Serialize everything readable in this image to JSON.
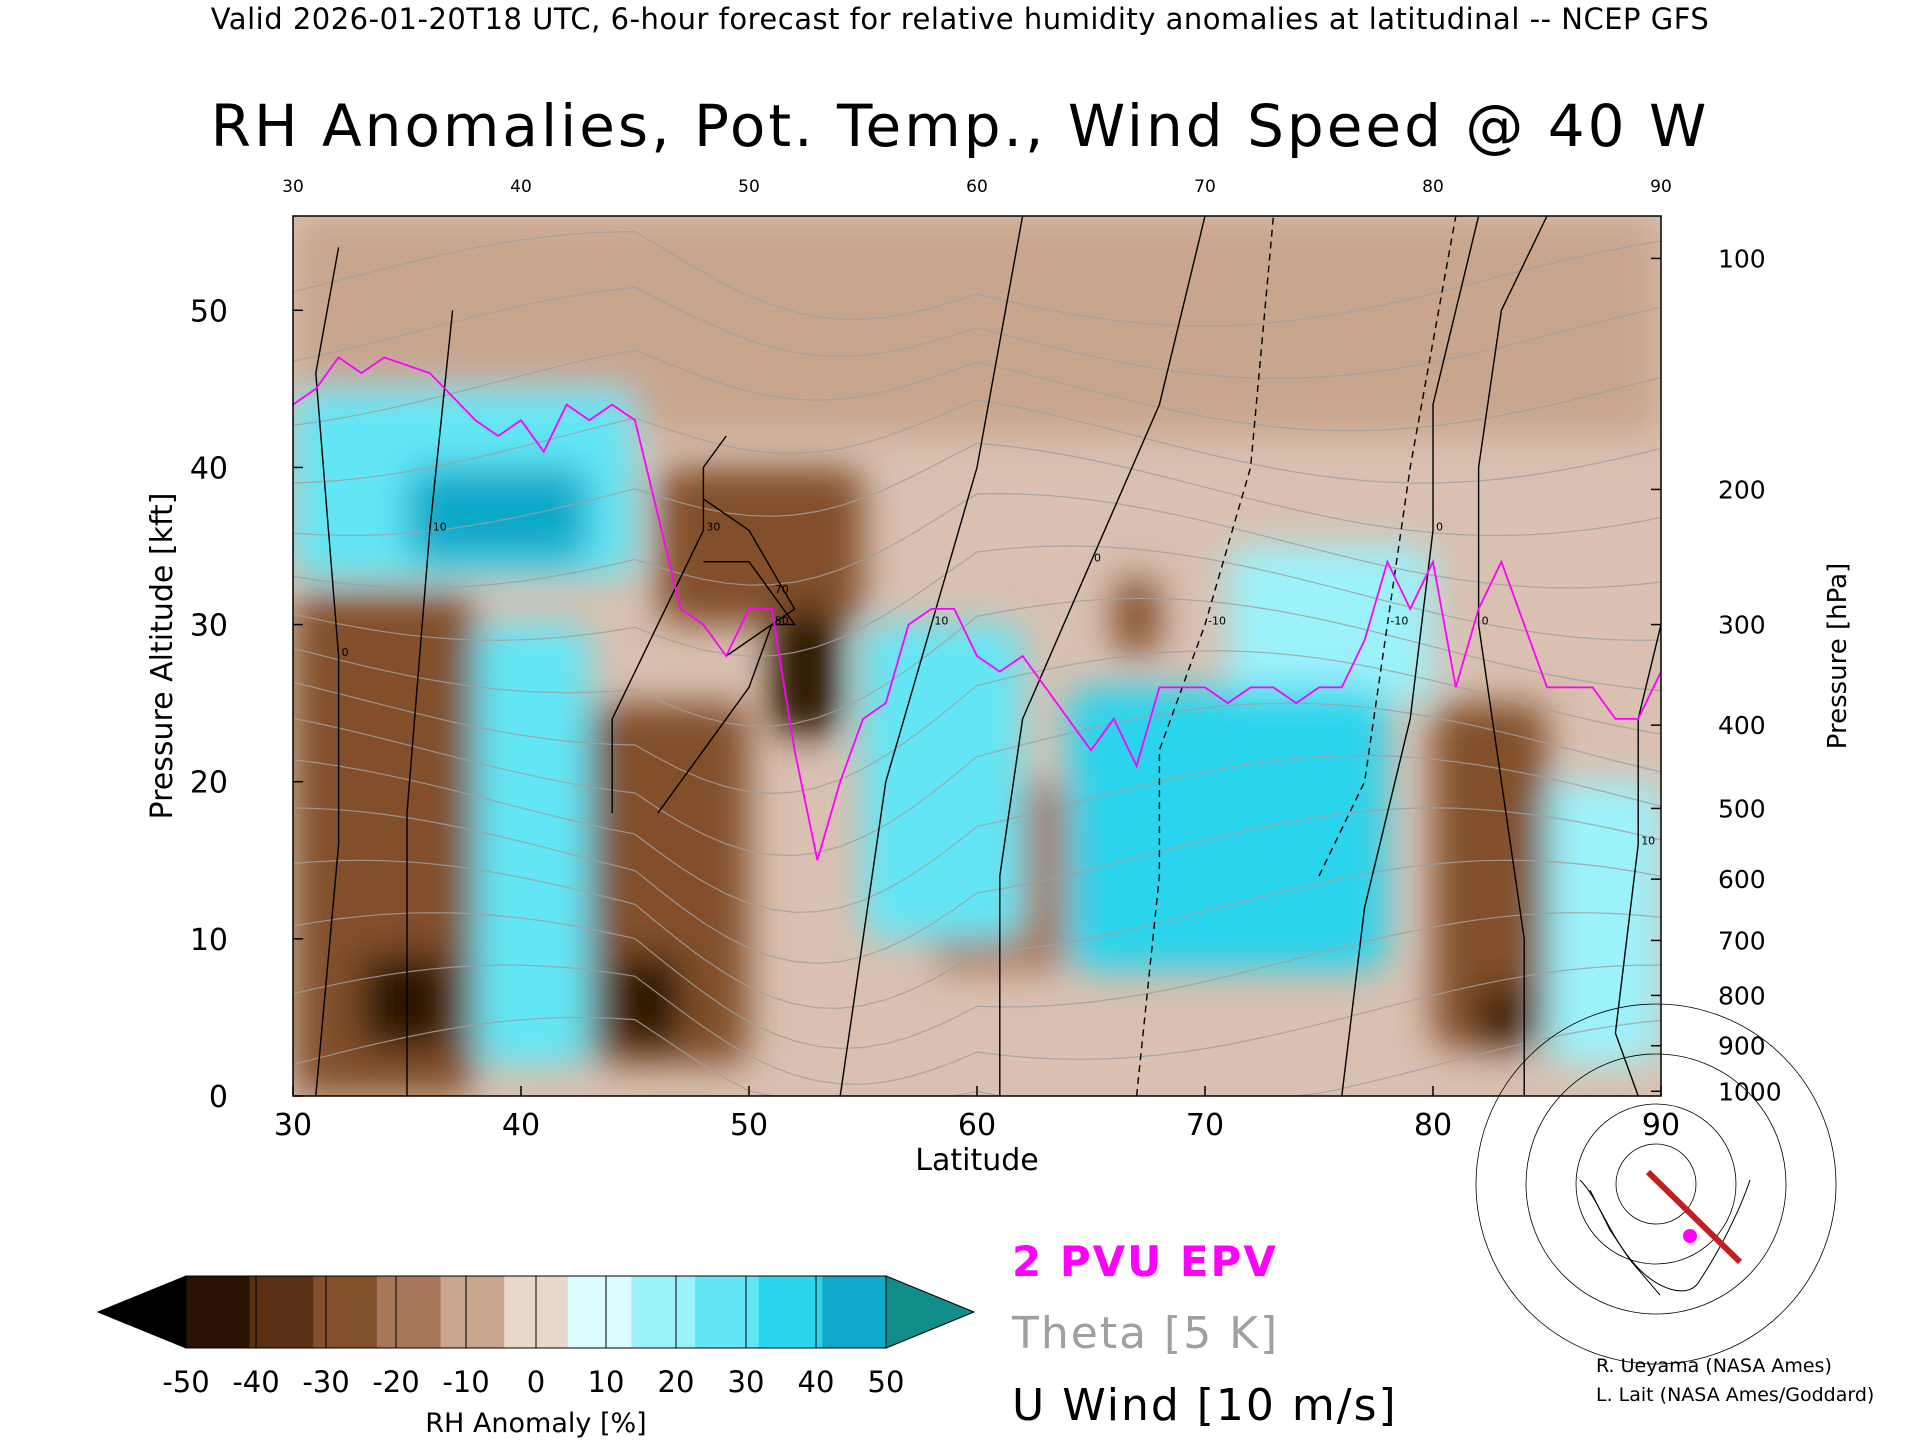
{
  "header": {
    "caption": "Valid 2026-01-20T18 UTC, 6-hour forecast for relative humidity anomalies at latitudinal -- NCEP GFS",
    "title": "RH Anomalies, Pot. Temp., Wind Speed @ 40 W"
  },
  "chart_data": {
    "type": "heatmap",
    "title": "RH Anomalies, Pot. Temp., Wind Speed @ 40 W",
    "xlabel": "Latitude",
    "ylabel": "Pressure Altitude [kft]",
    "y2label": "Pressure [hPa]",
    "xlim": [
      30,
      90
    ],
    "ylim": [
      0,
      56
    ],
    "x_ticks": [
      30,
      40,
      50,
      60,
      70,
      80,
      90
    ],
    "x_ticks_top": [
      30,
      40,
      50,
      60,
      70,
      80,
      90
    ],
    "y_ticks": [
      0,
      10,
      20,
      30,
      40,
      50
    ],
    "pressure_ticks": [
      {
        "label": "100",
        "kft": 53.3
      },
      {
        "label": "200",
        "kft": 38.6
      },
      {
        "label": "300",
        "kft": 30.0
      },
      {
        "label": "400",
        "kft": 23.6
      },
      {
        "label": "500",
        "kft": 18.3
      },
      {
        "label": "600",
        "kft": 13.8
      },
      {
        "label": "700",
        "kft": 9.9
      },
      {
        "label": "800",
        "kft": 6.4
      },
      {
        "label": "900",
        "kft": 3.2
      },
      {
        "label": "1000",
        "kft": 0.3
      }
    ],
    "colorbar": {
      "label": "RH Anomaly [%]",
      "ticks": [
        "-50",
        "-40",
        "-30",
        "-20",
        "-10",
        "0",
        "10",
        "20",
        "30",
        "40",
        "50"
      ],
      "colors": [
        "#000000",
        "#2a1205",
        "#5a3114",
        "#82502b",
        "#a8775a",
        "#c9a58d",
        "#e8d7cb",
        "#dbfbff",
        "#9cf2fb",
        "#62e6f5",
        "#2ad4ec",
        "#10a9c9",
        "#118d8a"
      ]
    },
    "legend": [
      {
        "name": "2 PVU EPV",
        "color": "#ff00ff"
      },
      {
        "name": "Theta [5 K]",
        "color": "#a0a0a0"
      },
      {
        "name": "U Wind [10 m/s]",
        "color": "#000000"
      }
    ],
    "rh_anomaly_cells": [
      {
        "lat": [
          30,
          38
        ],
        "kft": [
          0,
          32
        ],
        "value": -30
      },
      {
        "lat": [
          33,
          37
        ],
        "kft": [
          3,
          9
        ],
        "value": -50
      },
      {
        "lat": [
          30,
          45
        ],
        "kft": [
          33,
          45
        ],
        "value": 30
      },
      {
        "lat": [
          35,
          43
        ],
        "kft": [
          34,
          40
        ],
        "value": 50
      },
      {
        "lat": [
          38,
          43
        ],
        "kft": [
          2,
          30
        ],
        "value": 30
      },
      {
        "lat": [
          43,
          50
        ],
        "kft": [
          2,
          25
        ],
        "value": -30
      },
      {
        "lat": [
          44,
          47
        ],
        "kft": [
          3,
          9
        ],
        "value": -50
      },
      {
        "lat": [
          46,
          55
        ],
        "kft": [
          30,
          40
        ],
        "value": -30
      },
      {
        "lat": [
          51,
          54
        ],
        "kft": [
          23,
          31
        ],
        "value": -50
      },
      {
        "lat": [
          55,
          62
        ],
        "kft": [
          10,
          30
        ],
        "value": 30
      },
      {
        "lat": [
          58,
          64
        ],
        "kft": [
          8,
          20
        ],
        "value": -20
      },
      {
        "lat": [
          64,
          78
        ],
        "kft": [
          8,
          26
        ],
        "value": 40
      },
      {
        "lat": [
          66,
          68
        ],
        "kft": [
          28,
          33
        ],
        "value": -30
      },
      {
        "lat": [
          71,
          80
        ],
        "kft": [
          25,
          35
        ],
        "value": 20
      },
      {
        "lat": [
          80,
          85
        ],
        "kft": [
          3,
          25
        ],
        "value": -30
      },
      {
        "lat": [
          82,
          84
        ],
        "kft": [
          3,
          7
        ],
        "value": -50
      },
      {
        "lat": [
          85,
          90
        ],
        "kft": [
          2,
          20
        ],
        "value": 20
      },
      {
        "lat": [
          30,
          90
        ],
        "kft": [
          42,
          56
        ],
        "value": -10
      }
    ],
    "epv_2pvu_line": [
      [
        30,
        44
      ],
      [
        31,
        45
      ],
      [
        32,
        47
      ],
      [
        33,
        46
      ],
      [
        34,
        47
      ],
      [
        36,
        46
      ],
      [
        38,
        43
      ],
      [
        39,
        42
      ],
      [
        40,
        43
      ],
      [
        41,
        41
      ],
      [
        42,
        44
      ],
      [
        43,
        43
      ],
      [
        44,
        44
      ],
      [
        45,
        43
      ],
      [
        46,
        37
      ],
      [
        47,
        31
      ],
      [
        48,
        30
      ],
      [
        49,
        28
      ],
      [
        50,
        31
      ],
      [
        51,
        31
      ],
      [
        52,
        22
      ],
      [
        53,
        15
      ],
      [
        54,
        20
      ],
      [
        55,
        24
      ],
      [
        56,
        25
      ],
      [
        57,
        30
      ],
      [
        58,
        31
      ],
      [
        59,
        31
      ],
      [
        60,
        28
      ],
      [
        61,
        27
      ],
      [
        62,
        28
      ],
      [
        63,
        26
      ],
      [
        64,
        24
      ],
      [
        65,
        22
      ],
      [
        66,
        24
      ],
      [
        67,
        21
      ],
      [
        68,
        26
      ],
      [
        69,
        26
      ],
      [
        70,
        26
      ],
      [
        71,
        25
      ],
      [
        72,
        26
      ],
      [
        73,
        26
      ],
      [
        74,
        25
      ],
      [
        75,
        26
      ],
      [
        76,
        26
      ],
      [
        77,
        29
      ],
      [
        78,
        34
      ],
      [
        79,
        31
      ],
      [
        80,
        34
      ],
      [
        81,
        26
      ],
      [
        82,
        31
      ],
      [
        83,
        34
      ],
      [
        84,
        30
      ],
      [
        85,
        26
      ],
      [
        86,
        26
      ],
      [
        87,
        26
      ],
      [
        88,
        24
      ],
      [
        89,
        24
      ],
      [
        90,
        27
      ]
    ],
    "u_wind_contours": [
      {
        "label": "0",
        "points": [
          [
            31,
            0
          ],
          [
            32,
            16
          ],
          [
            32,
            28
          ],
          [
            31,
            46
          ],
          [
            32,
            54
          ]
        ]
      },
      {
        "label": "10",
        "points": [
          [
            35,
            0
          ],
          [
            35,
            18
          ],
          [
            36,
            36
          ],
          [
            37,
            50
          ]
        ]
      },
      {
        "label": "30",
        "points": [
          [
            44,
            18
          ],
          [
            44,
            24
          ],
          [
            46,
            30
          ],
          [
            48,
            36
          ],
          [
            48,
            40
          ],
          [
            49,
            42
          ]
        ]
      },
      {
        "label": "50",
        "points": [
          [
            46,
            18
          ],
          [
            48,
            22
          ],
          [
            50,
            26
          ],
          [
            51,
            30
          ],
          [
            52,
            31
          ],
          [
            50,
            36
          ],
          [
            48,
            38
          ]
        ]
      },
      {
        "label": "70",
        "points": [
          [
            49,
            28
          ],
          [
            51,
            30
          ],
          [
            52,
            30
          ],
          [
            51,
            32
          ],
          [
            50,
            34
          ],
          [
            48,
            34
          ]
        ]
      },
      {
        "label": "10",
        "points": [
          [
            54,
            0
          ],
          [
            55,
            10
          ],
          [
            56,
            20
          ],
          [
            58,
            30
          ],
          [
            60,
            40
          ],
          [
            62,
            56
          ]
        ]
      },
      {
        "label": "0",
        "points": [
          [
            61,
            0
          ],
          [
            61,
            14
          ],
          [
            62,
            24
          ],
          [
            65,
            34
          ],
          [
            68,
            44
          ],
          [
            70,
            56
          ]
        ]
      },
      {
        "label": "0",
        "points": [
          [
            76,
            0
          ],
          [
            77,
            12
          ],
          [
            79,
            24
          ],
          [
            80,
            36
          ],
          [
            80,
            44
          ],
          [
            82,
            56
          ]
        ]
      },
      {
        "label": "-10",
        "dashed": true,
        "points": [
          [
            67,
            0
          ],
          [
            68,
            14
          ],
          [
            68,
            22
          ],
          [
            70,
            30
          ],
          [
            72,
            40
          ],
          [
            73,
            56
          ]
        ]
      },
      {
        "label": "-10",
        "dashed": true,
        "points": [
          [
            75,
            14
          ],
          [
            77,
            20
          ],
          [
            78,
            30
          ],
          [
            79,
            40
          ],
          [
            81,
            56
          ]
        ]
      },
      {
        "label": "0",
        "points": [
          [
            84,
            0
          ],
          [
            84,
            10
          ],
          [
            83,
            20
          ],
          [
            82,
            30
          ],
          [
            82,
            40
          ],
          [
            83,
            50
          ],
          [
            85,
            56
          ]
        ]
      },
      {
        "label": "10",
        "points": [
          [
            89,
            0
          ],
          [
            88,
            4
          ],
          [
            89,
            16
          ],
          [
            89,
            24
          ],
          [
            90,
            30
          ]
        ]
      }
    ],
    "theta_levels": [
      270,
      280,
      290,
      300,
      310,
      320,
      330,
      340,
      350,
      360,
      370,
      380,
      390,
      400,
      410,
      420
    ]
  },
  "credits": {
    "line1": "R. Ueyama (NASA Ames)",
    "line2": "L. Lait (NASA Ames/Goddard)"
  },
  "colors": {
    "epv": "#ff00ff",
    "theta": "#a0a0a0",
    "wind": "#000000"
  },
  "icons": {
    "location_map": "polar-stereographic-map-icon"
  }
}
